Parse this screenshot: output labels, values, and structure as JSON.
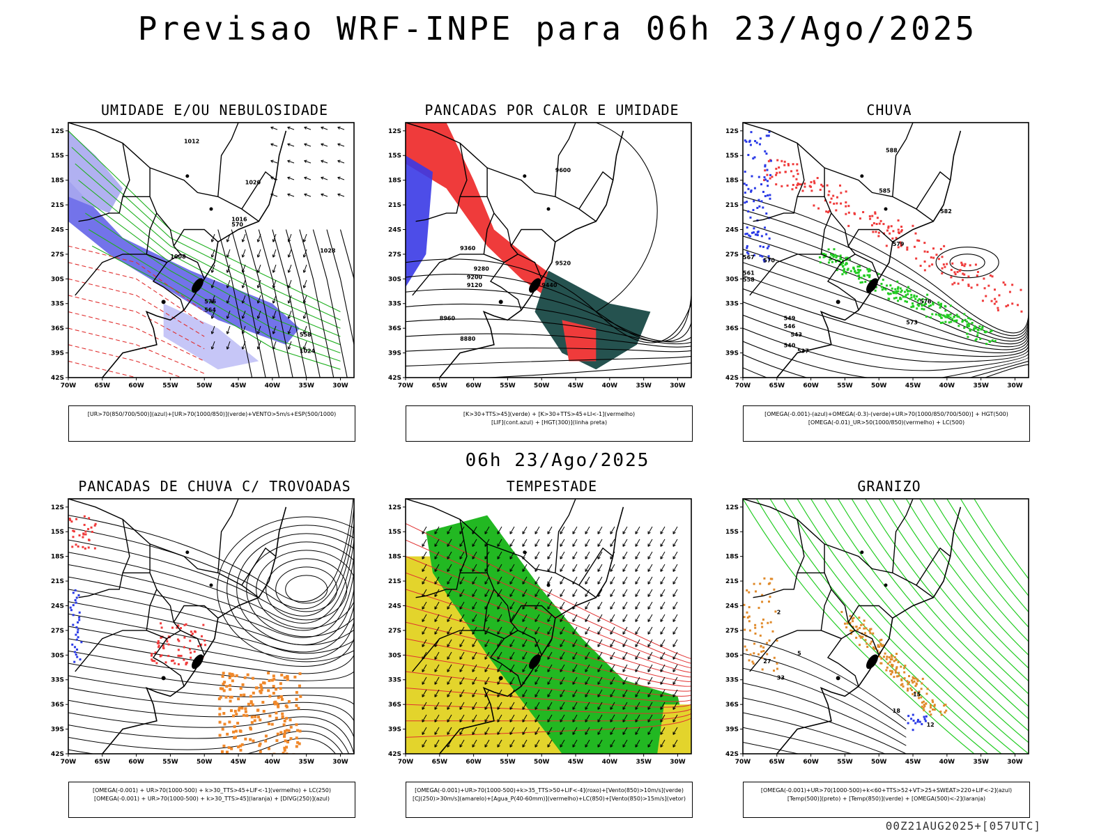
{
  "header": {
    "title": "Previsao WRF-INPE  para 06h 23/Ago/2025"
  },
  "mid_title": "06h 23/Ago/2025",
  "footer": "00Z21AUG2025+[057UTC]",
  "axes": {
    "lat_labels": [
      "12S",
      "15S",
      "18S",
      "21S",
      "24S",
      "27S",
      "30S",
      "33S",
      "36S",
      "39S",
      "42S"
    ],
    "lon_labels": [
      "70W",
      "65W",
      "60W",
      "55W",
      "50W",
      "45W",
      "40W",
      "35W",
      "30W"
    ]
  },
  "panels": [
    {
      "title": "UMIDADE E/OU NEBULOSIDADE",
      "legend": [
        "[UR>70(850/700/500)](azul)+[UR>70(1000/850)](verde)+VENTO>5m/s+ESP(500/1000)"
      ],
      "contour_labels": [
        "1012",
        "1020",
        "1016",
        "1008",
        "1024",
        "1028",
        "570",
        "576",
        "564",
        "558"
      ]
    },
    {
      "title": "PANCADAS POR CALOR E UMIDADE",
      "legend": [
        "[K>30+TTS>45](verde) + [K>30+TTS>45+LI<-1](vermelho)",
        "[LIF](cont.azul) + [HGT(300)](linha preta)"
      ],
      "contour_labels": [
        "9600",
        "9520",
        "9440",
        "9360",
        "9280",
        "9200",
        "9120",
        "8960",
        "8880"
      ]
    },
    {
      "title": "CHUVA",
      "legend": [
        "[OMEGA(-0.001)-(azul)+OMEGA(-0.3)-(verde)+UR>70(1000/850/700/500)] + HGT(500)",
        "[OMEGA(-0.01)_UR>50(1000/850)(vermelho) + LC(500)"
      ],
      "contour_labels": [
        "588",
        "585",
        "582",
        "579",
        "576",
        "573",
        "570",
        "567",
        "561",
        "558",
        "549",
        "546",
        "543",
        "540",
        "537"
      ]
    },
    {
      "title": "PANCADAS DE CHUVA C/ TROVOADAS",
      "legend": [
        "[OMEGA(-0.001) + UR>70(1000-500) + k>30_TTS>45+LIF<-1](vermelho) + LC(250)",
        "[OMEGA(-0.001) + UR>70(1000-500) + k>30_TTS>45](laranja) + [DIVG(250)](azul)"
      ],
      "contour_labels": []
    },
    {
      "title": "TEMPESTADE",
      "legend": [
        "[OMEGA(-0.001)+UR>70(1000-500)+k>35_TTS>50+LIF<-4](roxo)+[Vento(850)>10m/s](verde)",
        "[CJ(250)>30m/s](amarelo)+[Agua_P(40-60mm)](vermelho)+LC(850)+[Vento(850)>15m/s](vetor)"
      ],
      "contour_labels": []
    },
    {
      "title": "GRANIZO",
      "legend": [
        "[OMEGA(-0.001)+UR>70(1000-500)+k<60+TTS>52+VT>25+SWEAT>220+LIF<-2](azul)",
        "[Temp(500)](preto) + [Temp(850)](verde) + [OMEGA(500)<-2](laranja)"
      ],
      "contour_labels": [
        "12",
        "15",
        "18",
        "2",
        "5",
        "27",
        "33"
      ]
    }
  ]
}
